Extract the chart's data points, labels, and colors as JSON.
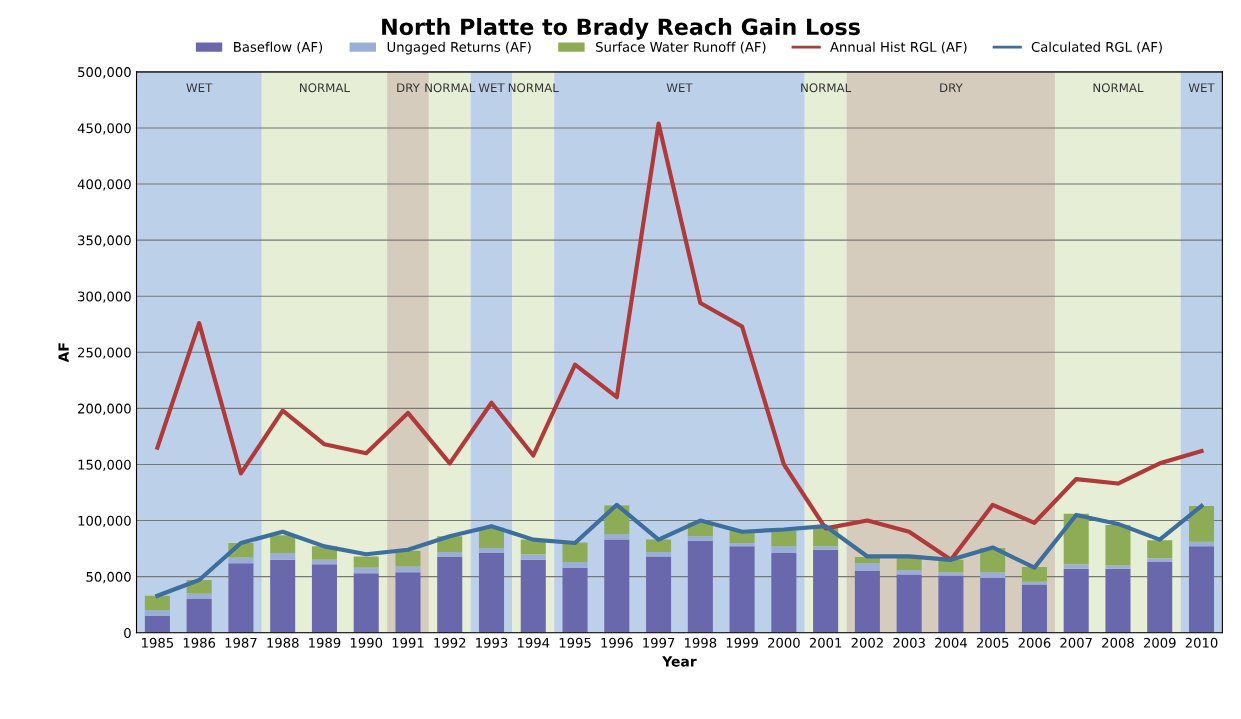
{
  "chart_data": {
    "type": "bar",
    "stacked": true,
    "title": "North Platte to Brady Reach Gain Loss",
    "xlabel": "Year",
    "ylabel": "AF",
    "categories": [
      "1985",
      "1986",
      "1987",
      "1988",
      "1989",
      "1990",
      "1991",
      "1992",
      "1993",
      "1994",
      "1995",
      "1996",
      "1997",
      "1998",
      "1999",
      "2000",
      "2001",
      "2002",
      "2003",
      "2004",
      "2005",
      "2006",
      "2007",
      "2008",
      "2009",
      "2010"
    ],
    "series": [
      {
        "name": "Baseflow (AF)",
        "color": "#6a68ad",
        "values": [
          15000,
          30000,
          62000,
          65000,
          61000,
          53000,
          54000,
          68000,
          71000,
          65000,
          58000,
          83000,
          68000,
          82000,
          77000,
          71000,
          74000,
          55000,
          52000,
          51000,
          49000,
          43000,
          57000,
          57000,
          63000,
          77000
        ]
      },
      {
        "name": "Ungaged Returns (AF)",
        "color": "#9aaed8",
        "values": [
          5000,
          5000,
          5000,
          6000,
          4000,
          5000,
          5000,
          4000,
          4500,
          5000,
          5000,
          5000,
          4000,
          4000,
          3000,
          6000,
          3000,
          7000,
          4000,
          3000,
          5000,
          2500,
          4000,
          3000,
          3500,
          4000
        ]
      },
      {
        "name": "Surface Water Runoff (AF)",
        "color": "#8eac56",
        "values": [
          13000,
          12000,
          13000,
          16000,
          12000,
          10000,
          14000,
          14000,
          18000,
          13000,
          17500,
          25500,
          11000,
          12000,
          11000,
          14000,
          18000,
          5500,
          11500,
          11000,
          21500,
          13000,
          45000,
          36000,
          16000,
          32000
        ]
      },
      {
        "name": "Annual Hist RGL (AF)",
        "type": "line",
        "color": "#b03a3a",
        "values": [
          165000,
          276000,
          142000,
          198000,
          168000,
          160000,
          196000,
          151000,
          205000,
          158000,
          239000,
          210000,
          454000,
          294000,
          273000,
          150000,
          93000,
          100000,
          90000,
          65000,
          114000,
          98000,
          137000,
          133000,
          151000,
          162000
        ]
      },
      {
        "name": "Calculated RGL (AF)",
        "type": "line",
        "color": "#3c6e9e",
        "values": [
          33000,
          47000,
          80000,
          90000,
          77000,
          70000,
          74000,
          86000,
          95000,
          83000,
          80000,
          114000,
          83000,
          100000,
          90000,
          92000,
          95000,
          68000,
          68000,
          65000,
          76000,
          58000,
          105000,
          97000,
          83000,
          113000
        ]
      }
    ],
    "ylim": [
      0,
      500000
    ],
    "yticks": [
      0,
      {
        "value": 50000,
        "label": "50,000"
      },
      {
        "value": 100000,
        "label": "100,000"
      },
      {
        "value": 150000,
        "label": "150,000"
      },
      {
        "value": 200000,
        "label": "200,000"
      },
      {
        "value": 250000,
        "label": "250,000"
      },
      {
        "value": 300000,
        "label": "300,000"
      },
      {
        "value": 350000,
        "label": "350,000"
      },
      {
        "value": 400000,
        "label": "400,000"
      },
      {
        "value": 450000,
        "label": "450,000"
      },
      {
        "value": 500000,
        "label": "500,000"
      }
    ],
    "bands": [
      {
        "axis": "x",
        "from": "1985",
        "to": "1987",
        "label": "WET",
        "color": "#bcd0ea"
      },
      {
        "axis": "x",
        "from": "1988",
        "to": "1990",
        "label": "NORMAL",
        "color": "#e6eed6"
      },
      {
        "axis": "x",
        "from": "1991",
        "to": "1991",
        "label": "DRY",
        "color": "#d6ccbe"
      },
      {
        "axis": "x",
        "from": "1992",
        "to": "1992",
        "label": "NORMAL",
        "color": "#e6eed6"
      },
      {
        "axis": "x",
        "from": "1993",
        "to": "1993",
        "label": "WET",
        "color": "#bcd0ea"
      },
      {
        "axis": "x",
        "from": "1994",
        "to": "1994",
        "label": "NORMAL",
        "color": "#e6eed6"
      },
      {
        "axis": "x",
        "from": "1995",
        "to": "2000",
        "label": "WET",
        "color": "#bcd0ea"
      },
      {
        "axis": "x",
        "from": "2001",
        "to": "2001",
        "label": "NORMAL",
        "color": "#e6eed6"
      },
      {
        "axis": "x",
        "from": "2002",
        "to": "2006",
        "label": "DRY",
        "color": "#d6ccbe"
      },
      {
        "axis": "x",
        "from": "2007",
        "to": "2009",
        "label": "NORMAL",
        "color": "#e6eed6"
      },
      {
        "axis": "x",
        "from": "2010",
        "to": "2010",
        "label": "WET",
        "color": "#bcd0ea"
      }
    ],
    "grid": "y",
    "legend": "top"
  }
}
